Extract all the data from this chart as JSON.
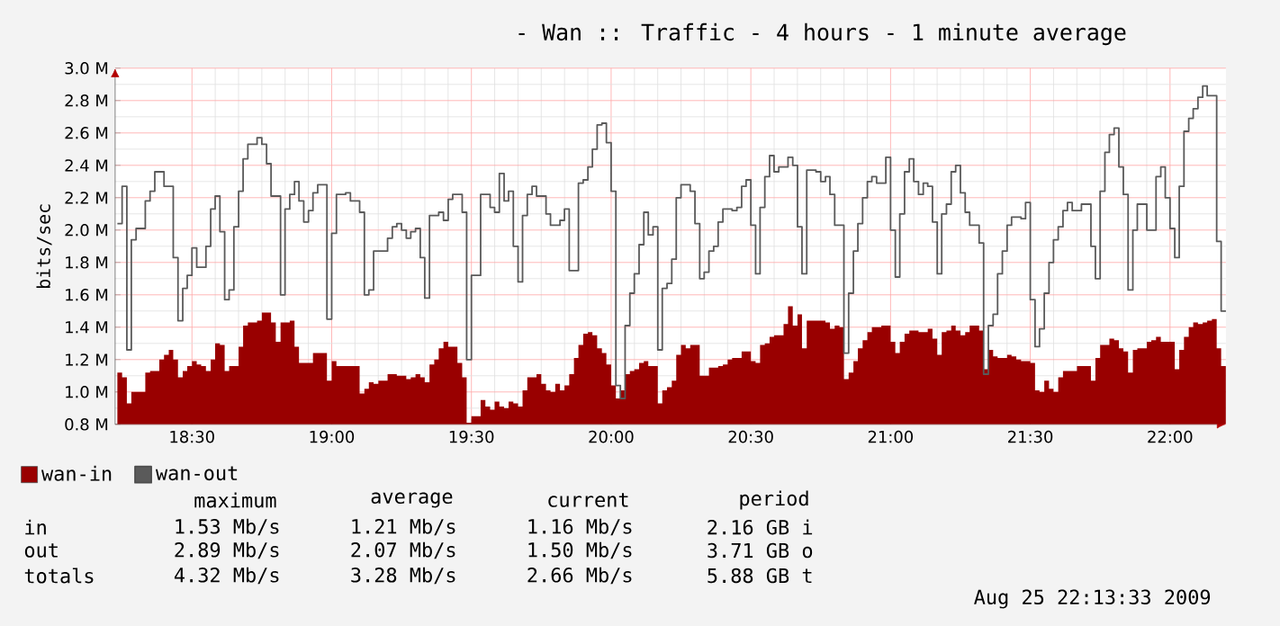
{
  "chart_data": {
    "type": "area",
    "title": "- Wan :: Traffic - 4 hours - 1 minute average",
    "ylabel": "bits/sec",
    "xlim": [
      18.225,
      22.2
    ],
    "xticks": [
      {
        "value": 18.5,
        "label": "18:30"
      },
      {
        "value": 19,
        "label": "19:00"
      },
      {
        "value": 19.5,
        "label": "19:30"
      },
      {
        "value": 20,
        "label": "20:00"
      },
      {
        "value": 20.5,
        "label": "20:30"
      },
      {
        "value": 21,
        "label": "21:00"
      },
      {
        "value": 21.5,
        "label": "21:30"
      },
      {
        "value": 22,
        "label": "22:00"
      }
    ],
    "ylim": [
      0.8,
      3.0
    ],
    "yticks": [
      {
        "value": 0.8,
        "label": "0.8 M"
      },
      {
        "value": 1.0,
        "label": "1.0 M"
      },
      {
        "value": 1.2,
        "label": "1.2 M"
      },
      {
        "value": 1.4,
        "label": "1.4 M"
      },
      {
        "value": 1.6,
        "label": "1.6 M"
      },
      {
        "value": 1.8,
        "label": "1.8 M"
      },
      {
        "value": 2.0,
        "label": "2.0 M"
      },
      {
        "value": 2.2,
        "label": "2.2 M"
      },
      {
        "value": 2.4,
        "label": "2.4 M"
      },
      {
        "value": 2.6,
        "label": "2.6 M"
      },
      {
        "value": 2.8,
        "label": "2.8 M"
      },
      {
        "value": 3.0,
        "label": "3.0 M"
      }
    ],
    "grid": true,
    "legend": "bottom left",
    "series": [
      {
        "name": "wan-in",
        "color": "#990000",
        "x": [
          18.233,
          18.25,
          18.267,
          18.283,
          18.333,
          18.35,
          18.383,
          18.4,
          18.417,
          18.433,
          18.45,
          18.467,
          18.483,
          18.5,
          18.517,
          18.533,
          18.55,
          18.567,
          18.583,
          18.6,
          18.617,
          18.633,
          18.667,
          18.683,
          18.7,
          18.733,
          18.75,
          18.783,
          18.8,
          18.817,
          18.85,
          18.867,
          18.883,
          18.933,
          18.983,
          19.0,
          19.017,
          19.1,
          19.117,
          19.133,
          19.15,
          19.167,
          19.2,
          19.233,
          19.267,
          19.283,
          19.3,
          19.317,
          19.333,
          19.35,
          19.367,
          19.383,
          19.4,
          19.417,
          19.45,
          19.467,
          19.483,
          19.5,
          19.533,
          19.55,
          19.567,
          19.583,
          19.6,
          19.617,
          19.633,
          19.65,
          19.667,
          19.683,
          19.7,
          19.733,
          19.75,
          19.767,
          19.783,
          19.8,
          19.817,
          19.833,
          19.85,
          19.867,
          19.883,
          19.9,
          19.917,
          19.933,
          19.95,
          19.967,
          19.983,
          20.0,
          20.017,
          20.033,
          20.05,
          20.067,
          20.083,
          20.1,
          20.117,
          20.133,
          20.167,
          20.183,
          20.2,
          20.217,
          20.233,
          20.25,
          20.267,
          20.283,
          20.317,
          20.35,
          20.383,
          20.4,
          20.417,
          20.433,
          20.467,
          20.5,
          20.517,
          20.533,
          20.55,
          20.567,
          20.583,
          20.617,
          20.633,
          20.65,
          20.667,
          20.683,
          20.7,
          20.767,
          20.783,
          20.8,
          20.817,
          20.833,
          20.85,
          20.867,
          20.883,
          20.9,
          20.917,
          20.933,
          20.967,
          21.0,
          21.017,
          21.033,
          21.05,
          21.067,
          21.1,
          21.133,
          21.15,
          21.167,
          21.183,
          21.2,
          21.217,
          21.233,
          21.25,
          21.267,
          21.283,
          21.317,
          21.333,
          21.35,
          21.367,
          21.383,
          21.417,
          21.433,
          21.45,
          21.467,
          21.5,
          21.517,
          21.533,
          21.55,
          21.567,
          21.583,
          21.6,
          21.617,
          21.667,
          21.717,
          21.733,
          21.75,
          21.783,
          21.8,
          21.817,
          21.833,
          21.85,
          21.867,
          21.883,
          21.917,
          21.933,
          21.95,
          21.967,
          22.017,
          22.033,
          22.05,
          22.067,
          22.083,
          22.1,
          22.117,
          22.133,
          22.15,
          22.167,
          22.183
        ],
        "values": [
          1.12,
          1.09,
          0.93,
          1.0,
          1.12,
          1.13,
          1.2,
          1.23,
          1.26,
          1.2,
          1.09,
          1.13,
          1.16,
          1.19,
          1.17,
          1.16,
          1.13,
          1.2,
          1.3,
          1.29,
          1.13,
          1.16,
          1.28,
          1.41,
          1.43,
          1.44,
          1.49,
          1.43,
          1.31,
          1.43,
          1.44,
          1.28,
          1.18,
          1.24,
          1.07,
          1.19,
          1.16,
          0.99,
          1.02,
          1.06,
          1.05,
          1.07,
          1.11,
          1.1,
          1.08,
          1.09,
          1.11,
          1.09,
          1.06,
          1.17,
          1.2,
          1.27,
          1.31,
          1.28,
          1.18,
          1.09,
          0.81,
          0.85,
          0.95,
          0.91,
          0.89,
          0.94,
          0.91,
          0.9,
          0.94,
          0.93,
          0.91,
          1.01,
          1.09,
          1.11,
          1.05,
          1.01,
          1.0,
          1.05,
          1.01,
          1.04,
          1.11,
          1.21,
          1.29,
          1.36,
          1.37,
          1.35,
          1.27,
          1.24,
          1.17,
          1.04,
          0.96,
          1.01,
          1.11,
          1.13,
          1.14,
          1.18,
          1.19,
          1.16,
          0.93,
          1.01,
          1.03,
          1.07,
          1.23,
          1.29,
          1.27,
          1.29,
          1.1,
          1.15,
          1.16,
          1.17,
          1.2,
          1.21,
          1.25,
          1.19,
          1.18,
          1.29,
          1.3,
          1.34,
          1.35,
          1.42,
          1.53,
          1.41,
          1.48,
          1.27,
          1.44,
          1.43,
          1.39,
          1.41,
          1.4,
          1.08,
          1.12,
          1.19,
          1.27,
          1.32,
          1.37,
          1.4,
          1.41,
          1.31,
          1.24,
          1.31,
          1.36,
          1.38,
          1.37,
          1.39,
          1.33,
          1.23,
          1.37,
          1.38,
          1.41,
          1.38,
          1.35,
          1.37,
          1.41,
          1.38,
          1.14,
          1.26,
          1.22,
          1.21,
          1.23,
          1.22,
          1.2,
          1.19,
          1.18,
          1.01,
          1.0,
          1.07,
          1.02,
          1.0,
          1.09,
          1.13,
          1.16,
          1.07,
          1.21,
          1.29,
          1.33,
          1.32,
          1.27,
          1.25,
          1.12,
          1.26,
          1.27,
          1.31,
          1.32,
          1.34,
          1.31,
          1.14,
          1.26,
          1.34,
          1.4,
          1.43,
          1.42,
          1.43,
          1.44,
          1.45,
          1.27,
          1.16
        ]
      },
      {
        "name": "wan-out",
        "type": "step",
        "color": "#5a5a5a",
        "x": [
          18.233,
          18.25,
          18.267,
          18.283,
          18.3,
          18.333,
          18.35,
          18.367,
          18.4,
          18.433,
          18.45,
          18.467,
          18.483,
          18.5,
          18.517,
          18.55,
          18.567,
          18.583,
          18.6,
          18.617,
          18.633,
          18.65,
          18.667,
          18.683,
          18.7,
          18.733,
          18.75,
          18.767,
          18.783,
          18.817,
          18.833,
          18.85,
          18.867,
          18.883,
          18.9,
          18.917,
          18.933,
          18.95,
          18.983,
          19.0,
          19.017,
          19.05,
          19.067,
          19.1,
          19.117,
          19.133,
          19.15,
          19.2,
          19.217,
          19.233,
          19.25,
          19.267,
          19.283,
          19.3,
          19.317,
          19.333,
          19.35,
          19.383,
          19.4,
          19.417,
          19.433,
          19.467,
          19.483,
          19.5,
          19.533,
          19.567,
          19.583,
          19.6,
          19.617,
          19.633,
          19.65,
          19.667,
          19.683,
          19.7,
          19.717,
          19.733,
          19.767,
          19.783,
          19.817,
          19.833,
          19.85,
          19.883,
          19.9,
          19.917,
          19.933,
          19.95,
          19.967,
          19.983,
          20.0,
          20.017,
          20.033,
          20.05,
          20.067,
          20.083,
          20.1,
          20.117,
          20.133,
          20.15,
          20.167,
          20.183,
          20.2,
          20.217,
          20.233,
          20.25,
          20.283,
          20.3,
          20.317,
          20.333,
          20.35,
          20.367,
          20.383,
          20.4,
          20.433,
          20.45,
          20.467,
          20.483,
          20.5,
          20.517,
          20.533,
          20.55,
          20.567,
          20.583,
          20.6,
          20.633,
          20.65,
          20.667,
          20.683,
          20.7,
          20.733,
          20.75,
          20.767,
          20.783,
          20.8,
          20.833,
          20.85,
          20.867,
          20.883,
          20.9,
          20.917,
          20.933,
          20.95,
          20.983,
          21.0,
          21.017,
          21.033,
          21.05,
          21.067,
          21.083,
          21.1,
          21.117,
          21.133,
          21.15,
          21.167,
          21.183,
          21.2,
          21.217,
          21.233,
          21.25,
          21.267,
          21.283,
          21.317,
          21.333,
          21.35,
          21.367,
          21.383,
          21.4,
          21.417,
          21.433,
          21.467,
          21.483,
          21.5,
          21.517,
          21.533,
          21.55,
          21.567,
          21.583,
          21.6,
          21.617,
          21.633,
          21.65,
          21.683,
          21.717,
          21.733,
          21.75,
          21.767,
          21.783,
          21.8,
          21.817,
          21.833,
          21.85,
          21.867,
          21.883,
          21.917,
          21.95,
          21.967,
          21.983,
          22.0,
          22.017,
          22.033,
          22.05,
          22.067,
          22.083,
          22.1,
          22.117,
          22.133,
          22.167,
          22.183
        ],
        "values": [
          2.04,
          2.27,
          1.26,
          1.94,
          2.01,
          2.18,
          2.24,
          2.36,
          2.27,
          1.83,
          1.44,
          1.64,
          1.72,
          1.89,
          1.77,
          1.9,
          2.13,
          2.21,
          1.99,
          1.57,
          1.63,
          2.02,
          2.24,
          2.44,
          2.53,
          2.57,
          2.53,
          2.41,
          2.21,
          1.6,
          2.13,
          2.22,
          2.3,
          2.18,
          2.05,
          2.12,
          2.23,
          2.28,
          1.45,
          1.98,
          2.22,
          2.23,
          2.18,
          2.11,
          1.6,
          1.63,
          1.87,
          1.95,
          2.02,
          2.04,
          2.0,
          1.95,
          1.99,
          2.01,
          1.83,
          1.58,
          2.09,
          2.11,
          2.06,
          2.19,
          2.22,
          2.11,
          1.2,
          1.72,
          2.22,
          2.14,
          2.11,
          2.35,
          2.18,
          2.24,
          1.9,
          1.68,
          2.09,
          2.22,
          2.27,
          2.21,
          2.1,
          2.03,
          2.06,
          2.13,
          1.75,
          2.29,
          2.31,
          2.39,
          2.5,
          2.65,
          2.66,
          2.54,
          2.24,
          1.04,
          0.96,
          1.41,
          1.61,
          1.73,
          1.91,
          2.11,
          1.97,
          2.02,
          1.26,
          1.64,
          1.67,
          1.82,
          2.2,
          2.28,
          2.24,
          2.04,
          1.7,
          1.74,
          1.87,
          1.9,
          2.05,
          2.13,
          2.12,
          2.14,
          2.27,
          2.31,
          2.03,
          1.73,
          2.14,
          2.33,
          2.46,
          2.36,
          2.39,
          2.45,
          2.4,
          2.02,
          1.73,
          2.37,
          2.36,
          2.3,
          2.33,
          2.22,
          2.03,
          1.24,
          1.61,
          1.87,
          2.04,
          2.2,
          2.3,
          2.33,
          2.29,
          2.45,
          2.0,
          1.71,
          2.1,
          2.36,
          2.44,
          2.3,
          2.22,
          2.29,
          2.27,
          2.05,
          1.73,
          2.1,
          2.16,
          2.36,
          2.4,
          2.23,
          2.11,
          2.03,
          1.92,
          1.11,
          1.41,
          1.48,
          1.73,
          1.87,
          2.03,
          2.08,
          2.07,
          2.17,
          1.57,
          1.28,
          1.39,
          1.61,
          1.8,
          1.94,
          2.02,
          2.12,
          2.17,
          2.12,
          2.16,
          1.9,
          1.7,
          2.24,
          2.48,
          2.59,
          2.63,
          2.39,
          2.22,
          1.63,
          2.0,
          2.16,
          2.0,
          2.33,
          2.39,
          2.2,
          2.01,
          1.83,
          2.27,
          2.61,
          2.69,
          2.75,
          2.82,
          2.89,
          2.83,
          1.93,
          1.5
        ]
      }
    ],
    "annotations": [
      "maximum",
      "average",
      "current",
      "period",
      "in",
      "1.53 Mb/s",
      "1.21 Mb/s",
      "1.16 Mb/s",
      "2.16 GB i",
      "out",
      "2.89 Mb/s",
      "2.07 Mb/s",
      "1.50 Mb/s",
      "3.71 GB o",
      "totals",
      "4.32 Mb/s",
      "3.28 Mb/s",
      "2.66 Mb/s",
      "5.88 GB t",
      "Aug 25 22:13:33 2009"
    ]
  }
}
